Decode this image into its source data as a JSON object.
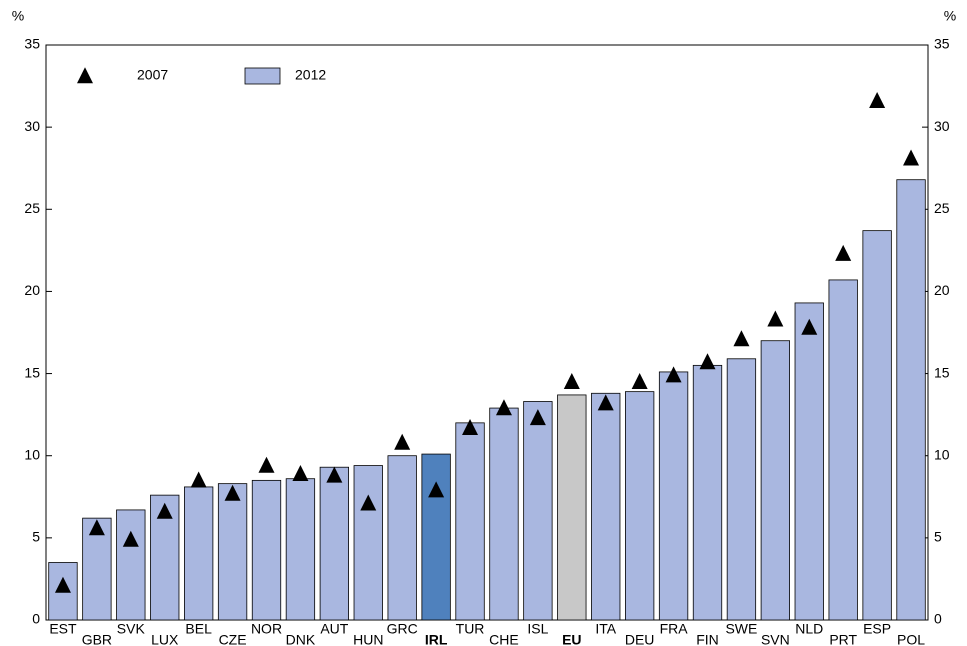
{
  "chart_data": {
    "type": "bar",
    "y_label": "%",
    "categories": [
      "EST",
      "GBR",
      "SVK",
      "LUX",
      "BEL",
      "CZE",
      "NOR",
      "DNK",
      "AUT",
      "HUN",
      "GRC",
      "IRL",
      "TUR",
      "CHE",
      "ISL",
      "EU",
      "ITA",
      "DEU",
      "FRA",
      "FIN",
      "SWE",
      "SVN",
      "NLD",
      "PRT",
      "ESP",
      "POL"
    ],
    "series": [
      {
        "name": "2007",
        "color": "#000000",
        "style": "marker",
        "values": [
          2.1,
          5.6,
          4.9,
          6.6,
          8.5,
          7.7,
          9.4,
          8.9,
          8.8,
          7.1,
          10.8,
          7.9,
          11.7,
          12.9,
          12.3,
          14.5,
          13.2,
          14.5,
          14.9,
          15.7,
          17.1,
          18.3,
          17.8,
          22.3,
          31.6,
          28.1
        ]
      },
      {
        "name": "2012",
        "color": "#a9b7e0",
        "style": "bar",
        "colors": [
          "#a9b7e0",
          "#a9b7e0",
          "#a9b7e0",
          "#a9b7e0",
          "#a9b7e0",
          "#a9b7e0",
          "#a9b7e0",
          "#a9b7e0",
          "#a9b7e0",
          "#a9b7e0",
          "#a9b7e0",
          "#4f81bd",
          "#a9b7e0",
          "#a9b7e0",
          "#a9b7e0",
          "#c8c8c8",
          "#a9b7e0",
          "#a9b7e0",
          "#a9b7e0",
          "#a9b7e0",
          "#a9b7e0",
          "#a9b7e0",
          "#a9b7e0",
          "#a9b7e0",
          "#a9b7e0",
          "#a9b7e0"
        ],
        "values": [
          3.5,
          6.2,
          6.7,
          7.6,
          8.1,
          8.3,
          8.5,
          8.6,
          9.3,
          9.4,
          10.0,
          10.1,
          12.0,
          12.9,
          13.3,
          13.7,
          13.8,
          13.9,
          15.1,
          15.5,
          15.9,
          17.0,
          19.3,
          20.7,
          23.7,
          26.8
        ]
      }
    ],
    "ylim": [
      0,
      35
    ],
    "yticks": [
      0,
      5,
      10,
      15,
      20,
      25,
      30,
      35
    ],
    "y2lim": [
      0,
      35
    ],
    "y2ticks": [
      0,
      5,
      10,
      15,
      20,
      25,
      30,
      35
    ],
    "grid": false,
    "legend": "upper left"
  }
}
